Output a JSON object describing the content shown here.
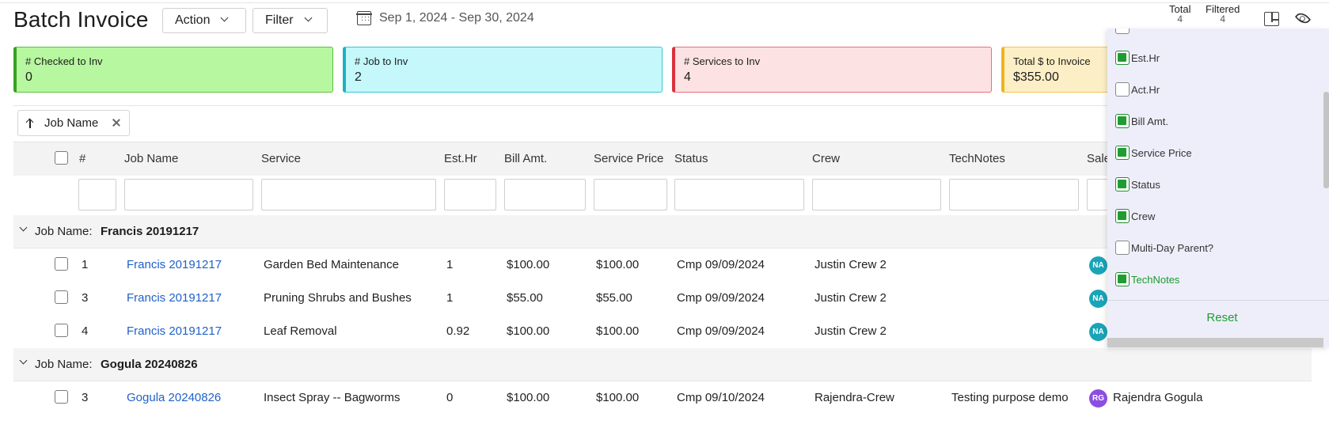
{
  "header": {
    "title": "Batch Invoice",
    "action_label": "Action",
    "filter_label": "Filter",
    "date_range": "Sep 1, 2024 - Sep 30, 2024",
    "total_label": "Total",
    "total_value": "4",
    "filtered_label": "Filtered",
    "filtered_value": "4"
  },
  "stats": [
    {
      "label": "# Checked to Inv",
      "value": "0"
    },
    {
      "label": "# Job to Inv",
      "value": "2"
    },
    {
      "label": "# Services to Inv",
      "value": "4"
    },
    {
      "label": "Total $ to Invoice",
      "value": "$355.00"
    }
  ],
  "sort_chip": {
    "label": "Job Name"
  },
  "columns": {
    "num": "#",
    "job_name": "Job Name",
    "service": "Service",
    "est_hr": "Est.Hr",
    "bill_amt": "Bill Amt.",
    "service_price": "Service Price",
    "status": "Status",
    "crew": "Crew",
    "tech_notes": "TechNotes",
    "sales": "Sale"
  },
  "groups": [
    {
      "label": "Job Name:",
      "value": "Francis 20191217",
      "rows": [
        {
          "num": "1",
          "job": "Francis 20191217",
          "service": "Garden Bed Maintenance",
          "est_hr": "1",
          "bill": "$100.00",
          "price": "$100.00",
          "status": "Cmp 09/09/2024",
          "crew": "Justin Crew 2",
          "notes": "",
          "avatar": "NA",
          "sales": ""
        },
        {
          "num": "3",
          "job": "Francis 20191217",
          "service": "Pruning Shrubs and Bushes",
          "est_hr": "1",
          "bill": "$55.00",
          "price": "$55.00",
          "status": "Cmp 09/09/2024",
          "crew": "Justin Crew 2",
          "notes": "",
          "avatar": "NA",
          "sales": ""
        },
        {
          "num": "4",
          "job": "Francis 20191217",
          "service": "Leaf Removal",
          "est_hr": "0.92",
          "bill": "$100.00",
          "price": "$100.00",
          "status": "Cmp 09/09/2024",
          "crew": "Justin Crew 2",
          "notes": "",
          "avatar": "NA",
          "sales": ""
        }
      ]
    },
    {
      "label": "Job Name:",
      "value": "Gogula 20240826",
      "rows": [
        {
          "num": "3",
          "job": "Gogula 20240826",
          "service": "Insect Spray -- Bagworms",
          "est_hr": "0",
          "bill": "$100.00",
          "price": "$100.00",
          "status": "Cmp 09/10/2024",
          "crew": "Rajendra-Crew",
          "notes": "Testing purpose demo",
          "avatar": "RG",
          "sales": "Rajendra Gogula"
        }
      ]
    }
  ],
  "column_panel": {
    "items": [
      {
        "label": "Est.Hr",
        "checked": true
      },
      {
        "label": "Act.Hr",
        "checked": false
      },
      {
        "label": "Bill Amt.",
        "checked": true
      },
      {
        "label": "Service Price",
        "checked": true
      },
      {
        "label": "Status",
        "checked": true
      },
      {
        "label": "Crew",
        "checked": true
      },
      {
        "label": "Multi-Day Parent?",
        "checked": false
      },
      {
        "label": "TechNotes",
        "checked": true
      }
    ],
    "reset_label": "Reset"
  },
  "colors": {
    "link": "#2061c9",
    "accent_green": "#1f9c32",
    "card_green": "#b7f7a0",
    "card_cyan": "#c4f8fb",
    "card_red": "#fde2e3",
    "card_yellow": "#fdefc5"
  }
}
